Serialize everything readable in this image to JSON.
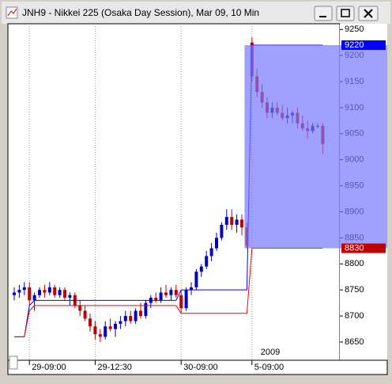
{
  "chart_data": {
    "type": "candlestick",
    "title": "JNH9 - Nikkei 225 (Osaka Day Session), Mar 09, 10 Min",
    "year_label": "2009",
    "up_color": "#0000c0",
    "down_color": "#c00000",
    "open": [
      8740,
      8745,
      8750,
      8755,
      8730,
      8740,
      8750,
      8745,
      8755,
      8740,
      8750,
      8735,
      8740,
      8720,
      8710,
      8695,
      8680,
      8665,
      8660,
      8680,
      8675,
      8685,
      8690,
      8700,
      8690,
      8710,
      8700,
      8725,
      8735,
      8730,
      8745,
      8740,
      8750,
      8740,
      8715,
      8750,
      8755,
      8785,
      8795,
      8815,
      8830,
      8850,
      8875,
      8890,
      8875,
      8885,
      8870,
      9225,
      9160,
      9130,
      9110,
      9090,
      9100,
      9090,
      9080,
      9085,
      9090,
      9070,
      9060,
      9055,
      9065,
      9065
    ],
    "high": [
      8755,
      8760,
      8765,
      8765,
      8745,
      8755,
      8760,
      8765,
      8760,
      8755,
      8755,
      8745,
      8745,
      8730,
      8720,
      8705,
      8690,
      8675,
      8690,
      8695,
      8690,
      8700,
      8710,
      8710,
      8715,
      8725,
      8730,
      8740,
      8745,
      8755,
      8760,
      8755,
      8760,
      8750,
      8755,
      8765,
      8790,
      8800,
      8825,
      8840,
      8860,
      8880,
      8905,
      8905,
      8895,
      8895,
      8880,
      9235,
      9175,
      9145,
      9120,
      9110,
      9110,
      9105,
      9100,
      9095,
      9100,
      9085,
      9075,
      9070,
      9070,
      9070
    ],
    "low": [
      8730,
      8735,
      8740,
      8720,
      8710,
      8735,
      8735,
      8740,
      8735,
      8735,
      8730,
      8720,
      8715,
      8700,
      8690,
      8670,
      8655,
      8650,
      8655,
      8670,
      8660,
      8675,
      8680,
      8685,
      8685,
      8695,
      8695,
      8715,
      8725,
      8725,
      8735,
      8730,
      8735,
      8705,
      8710,
      8740,
      8750,
      8775,
      8790,
      8805,
      8825,
      8845,
      8865,
      8865,
      8860,
      8855,
      8830,
      9150,
      9120,
      9100,
      9080,
      9080,
      9085,
      9075,
      9070,
      9070,
      9060,
      9055,
      9040,
      9050,
      9060,
      9010
    ],
    "close": [
      8745,
      8750,
      8755,
      8730,
      8740,
      8750,
      8745,
      8755,
      8740,
      8750,
      8735,
      8740,
      8720,
      8710,
      8695,
      8680,
      8665,
      8660,
      8680,
      8675,
      8685,
      8690,
      8700,
      8690,
      8710,
      8700,
      8725,
      8735,
      8730,
      8745,
      8740,
      8750,
      8740,
      8715,
      8750,
      8755,
      8785,
      8795,
      8815,
      8830,
      8850,
      8875,
      8890,
      8875,
      8885,
      8870,
      8835,
      9160,
      9130,
      9110,
      9090,
      9100,
      9090,
      9080,
      9085,
      9090,
      9070,
      9060,
      9055,
      9065,
      9065,
      9030
    ],
    "series": [
      {
        "name": "upper",
        "color": "#0000ff",
        "values": [
          8660,
          8660,
          8660,
          8720,
          8730,
          8730,
          8730,
          8730,
          8730,
          8730,
          8730,
          8730,
          8730,
          8730,
          8730,
          8730,
          8730,
          8730,
          8730,
          8730,
          8730,
          8730,
          8730,
          8730,
          8730,
          8730,
          8730,
          8730,
          8730,
          8730,
          8730,
          8730,
          8730,
          8750,
          8750,
          8750,
          8750,
          8750,
          8750,
          8750,
          8750,
          8750,
          8750,
          8750,
          8750,
          8750,
          8750,
          9220,
          9220,
          9220,
          9220,
          9220,
          9220,
          9220,
          9220,
          9220,
          9220,
          9220,
          9220,
          9220,
          9220,
          9220
        ]
      },
      {
        "name": "lower",
        "color": "#ff0000",
        "values": [
          8660,
          8660,
          8660,
          8710,
          8720,
          8720,
          8720,
          8720,
          8720,
          8720,
          8720,
          8720,
          8720,
          8720,
          8720,
          8720,
          8720,
          8720,
          8720,
          8720,
          8720,
          8720,
          8720,
          8720,
          8720,
          8720,
          8720,
          8720,
          8720,
          8720,
          8720,
          8720,
          8720,
          8705,
          8705,
          8705,
          8705,
          8705,
          8705,
          8705,
          8705,
          8705,
          8705,
          8705,
          8705,
          8705,
          8705,
          8830,
          8830,
          8830,
          8830,
          8830,
          8830,
          8830,
          8830,
          8830,
          8830,
          8830,
          8830,
          8830,
          8830,
          8830
        ]
      }
    ],
    "range_box": {
      "start": 46,
      "top": 9220,
      "bottom": 8830,
      "color": "#7777ff"
    },
    "markers": [
      {
        "value": 9220,
        "color": "#0000ff"
      },
      {
        "value": 8830,
        "color": "#c00000"
      }
    ],
    "ylim": [
      8615,
      9261
    ],
    "yticks": [
      8650,
      8700,
      8750,
      8800,
      8850,
      8900,
      8950,
      9000,
      9050,
      9100,
      9150,
      9200,
      9250
    ],
    "xticks": [
      {
        "value": 3,
        "label": "29-09:00"
      },
      {
        "value": 16,
        "label": "29-12:30"
      },
      {
        "value": 33,
        "label": "30-09:00"
      },
      {
        "value": 47,
        "label": "5-09:00"
      }
    ],
    "xgrid": true
  }
}
